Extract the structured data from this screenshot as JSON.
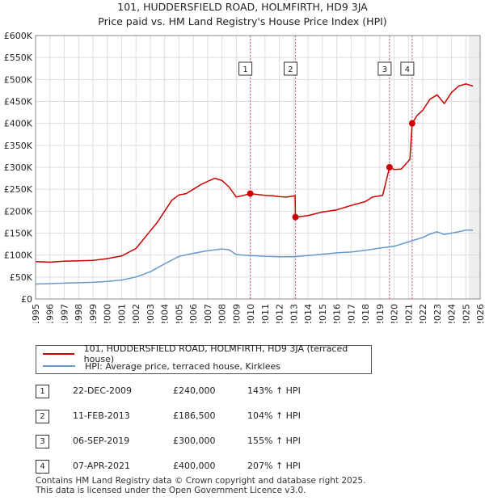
{
  "title_line1": "101, HUDDERSFIELD ROAD, HOLMFIRTH, HD9 3JA",
  "title_line2": "Price paid vs. HM Land Registry's House Price Index (HPI)",
  "chart_data": {
    "type": "line",
    "title": "101, HUDDERSFIELD ROAD, HOLMFIRTH, HD9 3JA — Price paid vs. HM Land Registry's House Price Index (HPI)",
    "xlabel": "",
    "ylabel": "",
    "xlim": [
      1995,
      2026
    ],
    "ylim": [
      0,
      600000
    ],
    "grid": true,
    "x_ticks": [
      "1995",
      "1996",
      "1997",
      "1998",
      "1999",
      "2000",
      "2001",
      "2002",
      "2003",
      "2004",
      "2005",
      "2006",
      "2007",
      "2008",
      "2009",
      "2010",
      "2011",
      "2012",
      "2013",
      "2014",
      "2015",
      "2016",
      "2017",
      "2018",
      "2019",
      "2020",
      "2021",
      "2022",
      "2023",
      "2024",
      "2025",
      "2026"
    ],
    "y_ticks": [
      {
        "value": 0,
        "label": "£0"
      },
      {
        "value": 50000,
        "label": "£50K"
      },
      {
        "value": 100000,
        "label": "£100K"
      },
      {
        "value": 150000,
        "label": "£150K"
      },
      {
        "value": 200000,
        "label": "£200K"
      },
      {
        "value": 250000,
        "label": "£250K"
      },
      {
        "value": 300000,
        "label": "£300K"
      },
      {
        "value": 350000,
        "label": "£350K"
      },
      {
        "value": 400000,
        "label": "£400K"
      },
      {
        "value": 450000,
        "label": "£450K"
      },
      {
        "value": 500000,
        "label": "£500K"
      },
      {
        "value": 550000,
        "label": "£550K"
      },
      {
        "value": 600000,
        "label": "£600K"
      }
    ],
    "series": [
      {
        "name": "101, HUDDERSFIELD ROAD, HOLMFIRTH, HD9 3JA (terraced house)",
        "color": "#cc0000",
        "x": [
          1995,
          1996,
          1997,
          1998,
          1999,
          2000,
          2001,
          2002,
          2002.5,
          2003,
          2003.5,
          2004,
          2004.5,
          2005,
          2005.5,
          2006,
          2006.5,
          2007,
          2007.5,
          2008,
          2008.5,
          2009,
          2009.5,
          2009.97,
          2010.5,
          2011,
          2011.5,
          2012,
          2012.5,
          2013.1,
          2013.12,
          2014,
          2015,
          2016,
          2017,
          2018,
          2018.5,
          2019.2,
          2019.68,
          2020,
          2020.5,
          2021.1,
          2021.26,
          2021.6,
          2022,
          2022.5,
          2023,
          2023.5,
          2024,
          2024.5,
          2025,
          2025.5
        ],
        "values": [
          85000,
          84000,
          86000,
          87000,
          88000,
          92000,
          98000,
          115000,
          135000,
          155000,
          175000,
          200000,
          225000,
          237000,
          240000,
          250000,
          260000,
          268000,
          275000,
          270000,
          255000,
          232000,
          236000,
          240000,
          238000,
          236000,
          235000,
          233000,
          232000,
          235000,
          186500,
          190000,
          198000,
          203000,
          213000,
          222000,
          232000,
          236000,
          300000,
          295000,
          296000,
          318000,
          400000,
          418000,
          430000,
          455000,
          465000,
          445000,
          470000,
          485000,
          490000,
          485000
        ],
        "sales": [
          {
            "id": "1",
            "x": 2009.97,
            "y": 240000
          },
          {
            "id": "2",
            "x": 2013.12,
            "y": 186500
          },
          {
            "id": "3",
            "x": 2019.68,
            "y": 300000
          },
          {
            "id": "4",
            "x": 2021.26,
            "y": 400000
          }
        ]
      },
      {
        "name": "HPI: Average price, terraced house, Kirklees",
        "color": "#6699cc",
        "x": [
          1995,
          1996,
          1997,
          1998,
          1999,
          2000,
          2001,
          2002,
          2003,
          2004,
          2005,
          2006,
          2007,
          2008,
          2008.5,
          2009,
          2010,
          2011,
          2012,
          2013,
          2014,
          2015,
          2016,
          2017,
          2018,
          2019,
          2020,
          2021,
          2022,
          2022.5,
          2023,
          2023.5,
          2024,
          2024.5,
          2025,
          2025.5
        ],
        "values": [
          34000,
          35000,
          36000,
          37000,
          38000,
          40000,
          43000,
          50000,
          62000,
          80000,
          97000,
          104000,
          110000,
          114000,
          112000,
          101000,
          99000,
          97000,
          96000,
          96000,
          99000,
          102000,
          105000,
          107000,
          111000,
          116000,
          120000,
          130000,
          140000,
          148000,
          153000,
          147000,
          150000,
          153000,
          157000,
          157000
        ]
      }
    ],
    "annotations": [
      {
        "id": "1",
        "x": 2009.97
      },
      {
        "id": "2",
        "x": 2013.12
      },
      {
        "id": "3",
        "x": 2019.68
      },
      {
        "id": "4",
        "x": 2021.26
      }
    ]
  },
  "legend": {
    "property_label": "101, HUDDERSFIELD ROAD, HOLMFIRTH, HD9 3JA (terraced house)",
    "hpi_label": "HPI: Average price, terraced house, Kirklees",
    "property_color": "#cc0000",
    "hpi_color": "#6699cc"
  },
  "sales": [
    {
      "id": "1",
      "date": "22-DEC-2009",
      "price": "£240,000",
      "hpi": "143% ↑ HPI"
    },
    {
      "id": "2",
      "date": "11-FEB-2013",
      "price": "£186,500",
      "hpi": "104% ↑ HPI"
    },
    {
      "id": "3",
      "date": "06-SEP-2019",
      "price": "£300,000",
      "hpi": "155% ↑ HPI"
    },
    {
      "id": "4",
      "date": "07-APR-2021",
      "price": "£400,000",
      "hpi": "207% ↑ HPI"
    }
  ],
  "footer_line1": "Contains HM Land Registry data © Crown copyright and database right 2025.",
  "footer_line2": "This data is licensed under the Open Government Licence v3.0."
}
